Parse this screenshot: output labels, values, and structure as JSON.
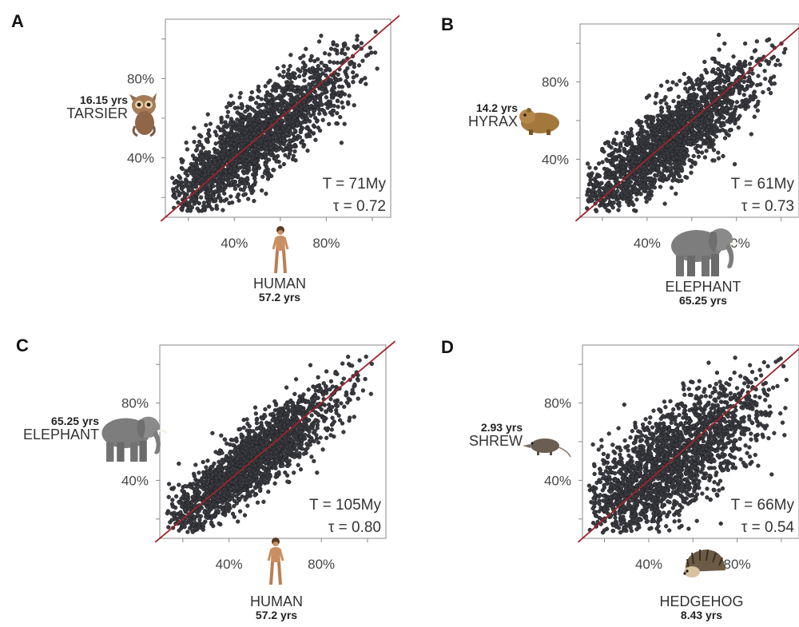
{
  "chart_data": [
    {
      "panel": "A",
      "type": "scatter",
      "x_species": {
        "name": "HUMAN",
        "years": "57.2 yrs",
        "icon": "human-icon"
      },
      "y_species": {
        "name": "TARSIER",
        "years": "16.15 yrs",
        "icon": "tarsier-icon"
      },
      "T": "T = 71My",
      "tau": "τ = 0.72",
      "x_ticks": [
        "40%",
        "80%"
      ],
      "y_ticks": [
        "80%",
        "40%"
      ],
      "xlim": [
        0.1,
        1.08
      ],
      "ylim": [
        0.1,
        1.1
      ],
      "tau_value": 0.72,
      "reference_line": "y = x",
      "point_color": "#3a3b40",
      "line_color": "#a0232b"
    },
    {
      "panel": "B",
      "type": "scatter",
      "x_species": {
        "name": "ELEPHANT",
        "years": "65.25 yrs",
        "icon": "elephant-icon"
      },
      "y_species": {
        "name": "HYRAX",
        "years": "14.2 yrs",
        "icon": "hyrax-icon"
      },
      "T": "T = 61My",
      "tau": "τ = 0.73",
      "x_ticks": [
        "40%",
        "80%"
      ],
      "y_ticks": [
        "80%",
        "40%"
      ],
      "xlim": [
        0.1,
        1.08
      ],
      "ylim": [
        0.1,
        1.1
      ],
      "tau_value": 0.73,
      "reference_line": "y = x",
      "point_color": "#3a3b40",
      "line_color": "#a0232b"
    },
    {
      "panel": "C",
      "type": "scatter",
      "x_species": {
        "name": "HUMAN",
        "years": "57.2 yrs",
        "icon": "human-icon"
      },
      "y_species": {
        "name": "ELEPHANT",
        "years": "65.25 yrs",
        "icon": "elephant-icon"
      },
      "T": "T = 105My",
      "tau": "τ = 0.80",
      "x_ticks": [
        "40%",
        "80%"
      ],
      "y_ticks": [
        "80%",
        "40%"
      ],
      "xlim": [
        0.1,
        1.08
      ],
      "ylim": [
        0.1,
        1.1
      ],
      "tau_value": 0.8,
      "reference_line": "y = x",
      "point_color": "#3a3b40",
      "line_color": "#a0232b"
    },
    {
      "panel": "D",
      "type": "scatter",
      "x_species": {
        "name": "HEDGEHOG",
        "years": "8.43 yrs",
        "icon": "hedgehog-icon"
      },
      "y_species": {
        "name": "SHREW",
        "years": "2.93 yrs",
        "icon": "shrew-icon"
      },
      "T": "T = 66My",
      "tau": "τ = 0.54",
      "x_ticks": [
        "40%",
        "80%"
      ],
      "y_ticks": [
        "80%",
        "40%"
      ],
      "xlim": [
        0.1,
        1.08
      ],
      "ylim": [
        0.1,
        1.1
      ],
      "tau_value": 0.54,
      "reference_line": "y = x",
      "point_color": "#3a3b40",
      "line_color": "#a0232b"
    }
  ]
}
